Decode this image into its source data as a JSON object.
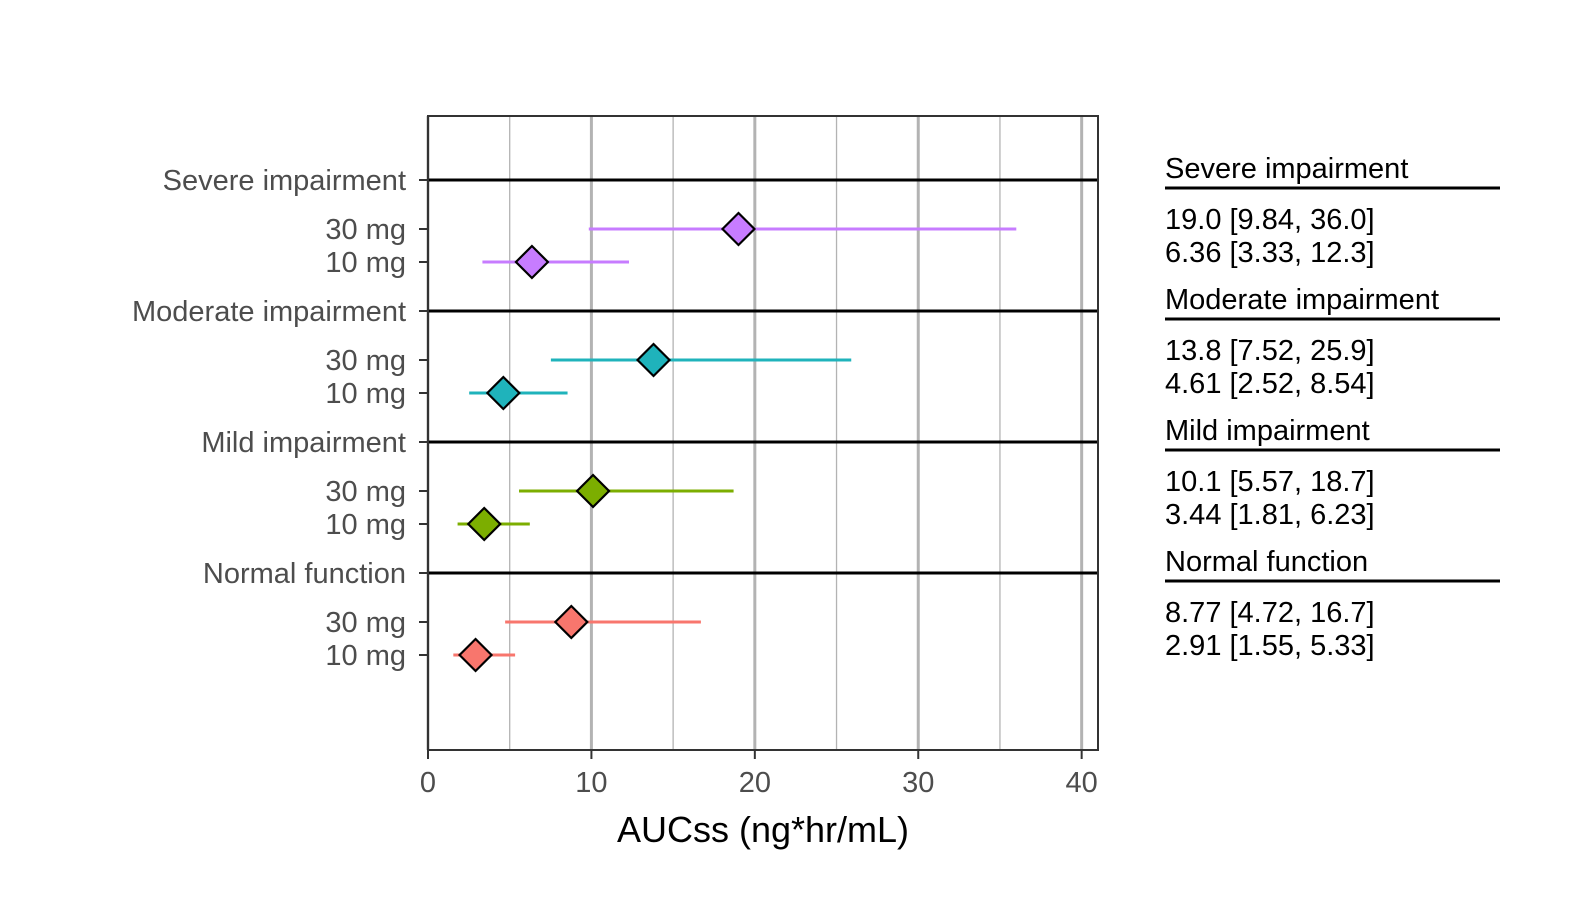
{
  "chart_data": {
    "type": "scatter",
    "subtype": "forest-plot",
    "xlabel": "AUCss (ng*hr/mL)",
    "xlim": [
      0,
      41
    ],
    "xticks": [
      0,
      10,
      20,
      30,
      40
    ],
    "minor_gridlines": [
      5,
      15,
      25,
      35
    ],
    "grid": "vertical",
    "marker": "diamond",
    "groups": [
      {
        "name": "Severe impairment",
        "color": "#C77CFF",
        "rows": [
          {
            "dose": "30 mg",
            "estimate": 19.0,
            "lower": 9.84,
            "upper": 36.0,
            "text": "19.0 [9.84, 36.0]"
          },
          {
            "dose": "10 mg",
            "estimate": 6.36,
            "lower": 3.33,
            "upper": 12.3,
            "text": "6.36 [3.33, 12.3]"
          }
        ]
      },
      {
        "name": "Moderate impairment",
        "color": "#1FB3BB",
        "rows": [
          {
            "dose": "30 mg",
            "estimate": 13.8,
            "lower": 7.52,
            "upper": 25.9,
            "text": "13.8 [7.52, 25.9]"
          },
          {
            "dose": "10 mg",
            "estimate": 4.61,
            "lower": 2.52,
            "upper": 8.54,
            "text": "4.61 [2.52, 8.54]"
          }
        ]
      },
      {
        "name": "Mild impairment",
        "color": "#7CAE00",
        "rows": [
          {
            "dose": "30 mg",
            "estimate": 10.1,
            "lower": 5.57,
            "upper": 18.7,
            "text": "10.1 [5.57, 18.7]"
          },
          {
            "dose": "10 mg",
            "estimate": 3.44,
            "lower": 1.81,
            "upper": 6.23,
            "text": "3.44 [1.81, 6.23]"
          }
        ]
      },
      {
        "name": "Normal function",
        "color": "#F8766D",
        "rows": [
          {
            "dose": "30 mg",
            "estimate": 8.77,
            "lower": 4.72,
            "upper": 16.7,
            "text": "8.77 [4.72, 16.7]"
          },
          {
            "dose": "10 mg",
            "estimate": 2.91,
            "lower": 1.55,
            "upper": 5.33,
            "text": "2.91 [1.55, 5.33]"
          }
        ]
      }
    ]
  }
}
